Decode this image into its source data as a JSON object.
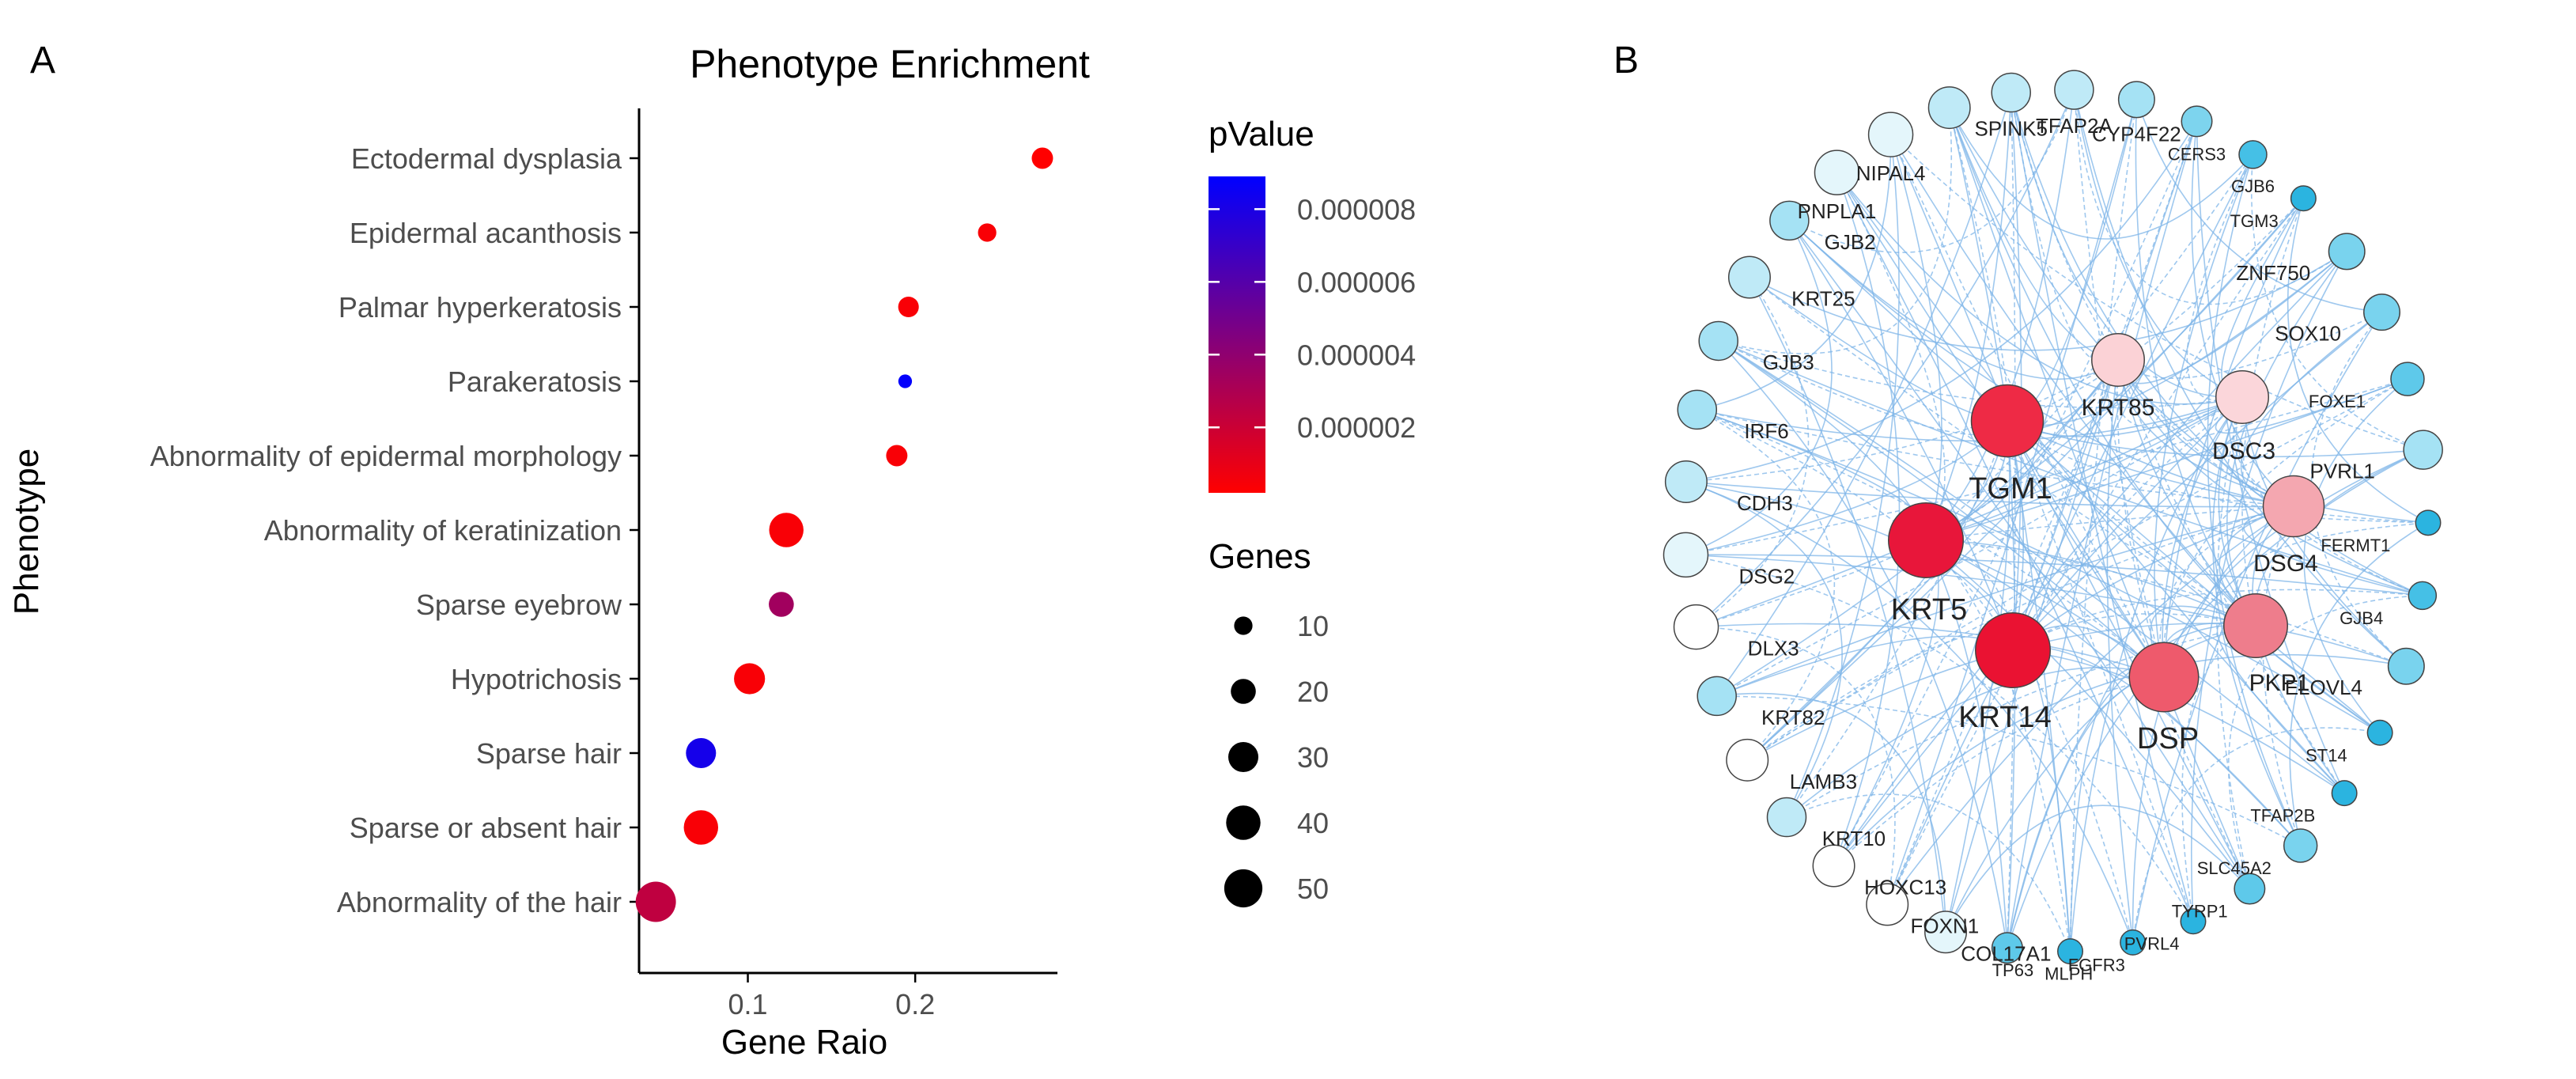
{
  "panel_labels": {
    "a": "A",
    "b": "B"
  },
  "chart_data": [
    {
      "type": "scatter",
      "subtype": "dot-plot",
      "title": "Phenotype Enrichment",
      "xlabel": "Gene Raio",
      "ylabel": "Phenotype",
      "xlim": [
        0.035,
        0.285
      ],
      "x_ticks": [
        0.1,
        0.2
      ],
      "x_tick_labels": [
        "0.1",
        "0.2"
      ],
      "categories": [
        "Ectodermal dysplasia",
        "Epidermal acanthosis",
        "Palmar hyperkeratosis",
        "Parakeratosis",
        "Abnormality of epidermal morphology",
        "Abnormality of keratinization",
        "Sparse eyebrow",
        "Hypotrichosis",
        "Sparse hair",
        "Sparse or absent hair",
        "Abnormality of the hair"
      ],
      "points": [
        {
          "category": "Ectodermal dysplasia",
          "gene_ratio": 0.276,
          "genes": 14,
          "pvalue": 2e-07
        },
        {
          "category": "Epidermal acanthosis",
          "gene_ratio": 0.243,
          "genes": 10,
          "pvalue": 4e-07
        },
        {
          "category": "Palmar hyperkeratosis",
          "gene_ratio": 0.196,
          "genes": 13,
          "pvalue": 4e-07
        },
        {
          "category": "Parakeratosis",
          "gene_ratio": 0.194,
          "genes": 5,
          "pvalue": 8.8e-06
        },
        {
          "category": "Abnormality of epidermal morphology",
          "gene_ratio": 0.189,
          "genes": 14,
          "pvalue": 4e-07
        },
        {
          "category": "Abnormality of keratinization",
          "gene_ratio": 0.123,
          "genes": 40,
          "pvalue": 4e-07
        },
        {
          "category": "Sparse eyebrow",
          "gene_ratio": 0.12,
          "genes": 20,
          "pvalue": 3.4e-06
        },
        {
          "category": "Hypotrichosis",
          "gene_ratio": 0.101,
          "genes": 32,
          "pvalue": 4e-07
        },
        {
          "category": "Sparse hair",
          "gene_ratio": 0.072,
          "genes": 30,
          "pvalue": 8.2e-06
        },
        {
          "category": "Sparse or absent hair",
          "gene_ratio": 0.072,
          "genes": 40,
          "pvalue": 4e-07
        },
        {
          "category": "Abnormality of the hair",
          "gene_ratio": 0.045,
          "genes": 56,
          "pvalue": 2.4e-06
        }
      ],
      "color_legend": {
        "title": "pValue",
        "range": [
          2e-07,
          8.9e-06
        ],
        "ticks": [
          2e-06,
          4e-06,
          6e-06,
          8e-06
        ],
        "tick_labels": [
          "0.000002",
          "0.000004",
          "0.000006",
          "0.000008"
        ],
        "low_color": "#ff0000",
        "high_color": "#0000ff"
      },
      "size_legend": {
        "title": "Genes",
        "values": [
          10,
          20,
          30,
          40,
          50
        ],
        "labels": [
          "10",
          "20",
          "30",
          "40",
          "50"
        ]
      }
    },
    {
      "type": "network",
      "edge_color": "#7fb6e8",
      "outer_nodes": [
        {
          "label": "SPINK5",
          "fill": "#bfeaf7",
          "size": 14
        },
        {
          "label": "TFAP2A",
          "fill": "#bfeaf7",
          "size": 14
        },
        {
          "label": "CYP4F22",
          "fill": "#a5e2f4",
          "size": 13
        },
        {
          "label": "CERS3",
          "fill": "#7dd4ee",
          "size": 11
        },
        {
          "label": "GJB6",
          "fill": "#45c0e6",
          "size": 10
        },
        {
          "label": "TGM3",
          "fill": "#2bb4e0",
          "size": 9
        },
        {
          "label": "ZNF750",
          "fill": "#79d3ee",
          "size": 13
        },
        {
          "label": "SOX10",
          "fill": "#79d3ee",
          "size": 13
        },
        {
          "label": "FOXE1",
          "fill": "#5ec9ea",
          "size": 12
        },
        {
          "label": "PVRL1",
          "fill": "#a5e2f4",
          "size": 14
        },
        {
          "label": "FERMT1",
          "fill": "#2bb4e0",
          "size": 9
        },
        {
          "label": "GJB4",
          "fill": "#45c0e6",
          "size": 10
        },
        {
          "label": "ELOVL4",
          "fill": "#79d3ee",
          "size": 13
        },
        {
          "label": "ST14",
          "fill": "#2bb4e0",
          "size": 9
        },
        {
          "label": "TFAP2B",
          "fill": "#2bb4e0",
          "size": 9
        },
        {
          "label": "SLC45A2",
          "fill": "#79d3ee",
          "size": 12
        },
        {
          "label": "TYRP1",
          "fill": "#5ec9ea",
          "size": 11
        },
        {
          "label": "PVRL4",
          "fill": "#2bb4e0",
          "size": 9
        },
        {
          "label": "FGFR3",
          "fill": "#2bb4e0",
          "size": 9
        },
        {
          "label": "MLPH",
          "fill": "#2bb4e0",
          "size": 9
        },
        {
          "label": "TP63",
          "fill": "#5ec9ea",
          "size": 11
        },
        {
          "label": "COL17A1",
          "fill": "#e4f6fb",
          "size": 15
        },
        {
          "label": "FOXN1",
          "fill": "#ffffff",
          "size": 15
        },
        {
          "label": "HOXC13",
          "fill": "#ffffff",
          "size": 15
        },
        {
          "label": "KRT10",
          "fill": "#bfeaf7",
          "size": 14
        },
        {
          "label": "LAMB3",
          "fill": "#ffffff",
          "size": 15
        },
        {
          "label": "KRT82",
          "fill": "#a5e2f4",
          "size": 14
        },
        {
          "label": "DLX3",
          "fill": "#ffffff",
          "size": 16
        },
        {
          "label": "DSG2",
          "fill": "#e4f6fb",
          "size": 16
        },
        {
          "label": "CDH3",
          "fill": "#bfeaf7",
          "size": 15
        },
        {
          "label": "IRF6",
          "fill": "#a5e2f4",
          "size": 14
        },
        {
          "label": "GJB3",
          "fill": "#a5e2f4",
          "size": 14
        },
        {
          "label": "KRT25",
          "fill": "#bfeaf7",
          "size": 15
        },
        {
          "label": "GJB2",
          "fill": "#a5e2f4",
          "size": 14
        },
        {
          "label": "PNPLA1",
          "fill": "#e4f6fb",
          "size": 16
        },
        {
          "label": "NIPAL4",
          "fill": "#e4f6fb",
          "size": 16
        },
        {
          "label": "",
          "fill": "#bfeaf7",
          "size": 15
        }
      ],
      "hub_nodes": [
        {
          "label": "KRT85",
          "fill": "#fbd2d6",
          "size": 19
        },
        {
          "label": "DSC3",
          "fill": "#fbd6da",
          "size": 19
        },
        {
          "label": "TGM1",
          "fill": "#ee2a45",
          "size": 26
        },
        {
          "label": "DSG4",
          "fill": "#f4a7b0",
          "size": 22
        },
        {
          "label": "KRT5",
          "fill": "#e8163a",
          "size": 27
        },
        {
          "label": "PKP1",
          "fill": "#ee7d8c",
          "size": 23
        },
        {
          "label": "KRT14",
          "fill": "#ea1232",
          "size": 27
        },
        {
          "label": "DSP",
          "fill": "#ee5a6c",
          "size": 25
        }
      ]
    }
  ]
}
